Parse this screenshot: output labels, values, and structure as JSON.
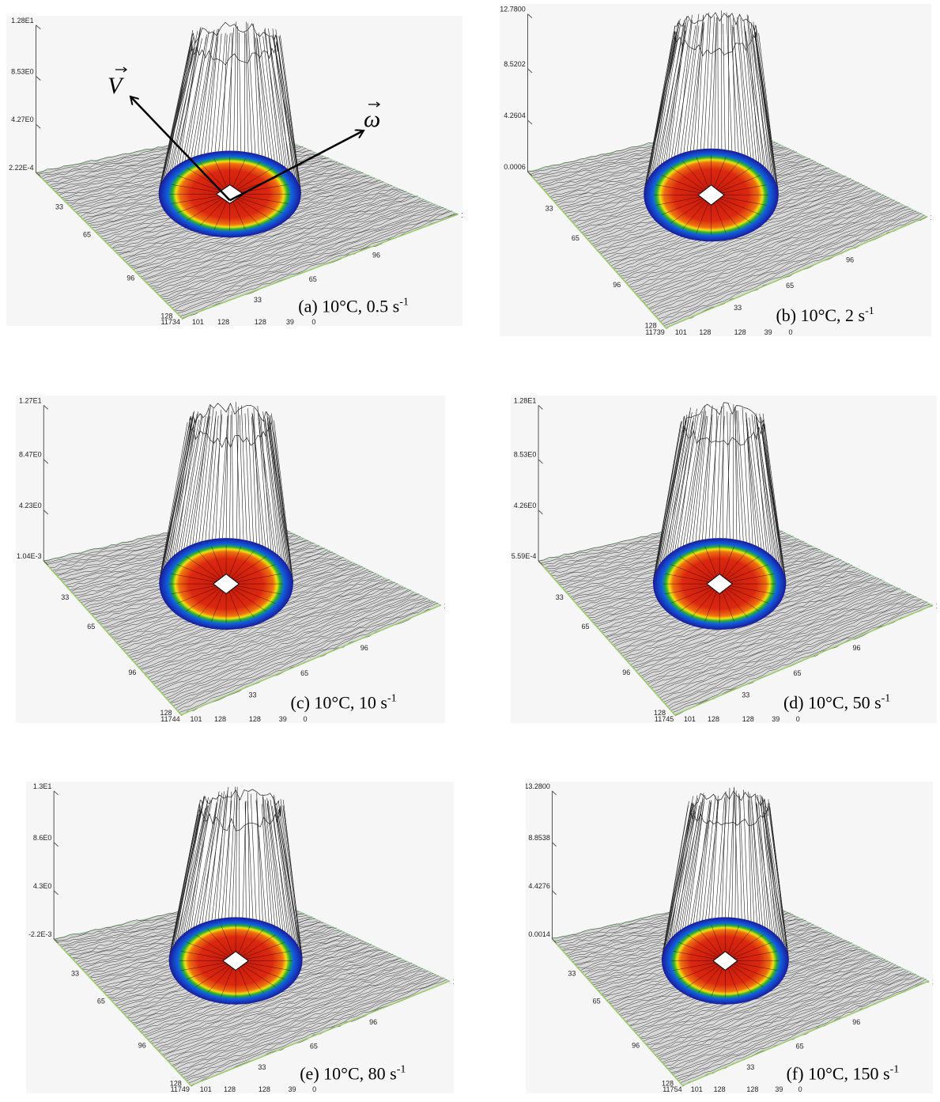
{
  "panels": [
    {
      "z_ticks": [
        "1.28E1",
        "8.53E0",
        "4.27E0",
        "2.22E-4"
      ],
      "left_ticks": [
        "33",
        "65",
        "96",
        "128"
      ],
      "right_ticks": [
        "128",
        "96",
        "65",
        "33"
      ],
      "bottom_ticks": [
        "11734",
        "101",
        "128",
        "128",
        "39",
        "0"
      ],
      "caption": "(a) 10°C, 0.5 s",
      "caption_sup": "-1"
    },
    {
      "z_ticks": [
        "12.7800",
        "8.5202",
        "4.2604",
        "0.0006"
      ],
      "left_ticks": [
        "33",
        "65",
        "96",
        "128"
      ],
      "right_ticks": [
        "128",
        "96",
        "65",
        "33"
      ],
      "bottom_ticks": [
        "11739",
        "101",
        "128",
        "128",
        "39",
        "0"
      ],
      "caption": "(b) 10°C, 2 s",
      "caption_sup": "-1"
    },
    {
      "z_ticks": [
        "1.27E1",
        "8.47E0",
        "4.23E0",
        "1.04E-3"
      ],
      "left_ticks": [
        "33",
        "65",
        "96",
        "128"
      ],
      "right_ticks": [
        "128",
        "96",
        "65",
        "33"
      ],
      "bottom_ticks": [
        "11744",
        "101",
        "128",
        "128",
        "39",
        "0"
      ],
      "caption": "(c) 10°C, 10 s",
      "caption_sup": "-1"
    },
    {
      "z_ticks": [
        "1.28E1",
        "8.53E0",
        "4.26E0",
        "5.59E-4"
      ],
      "left_ticks": [
        "33",
        "65",
        "96",
        "128"
      ],
      "right_ticks": [
        "128",
        "96",
        "65",
        "33"
      ],
      "bottom_ticks": [
        "11745",
        "101",
        "128",
        "128",
        "39",
        "0"
      ],
      "caption": "(d) 10°C, 50 s",
      "caption_sup": "-1"
    },
    {
      "z_ticks": [
        "1.3E1",
        "8.6E0",
        "4.3E0",
        "-2.2E-3"
      ],
      "left_ticks": [
        "33",
        "65",
        "96",
        "128"
      ],
      "right_ticks": [
        "128",
        "96",
        "65",
        "33"
      ],
      "bottom_ticks": [
        "11749",
        "101",
        "128",
        "128",
        "39",
        "0"
      ],
      "caption": "(e) 10°C, 80 s",
      "caption_sup": "-1"
    },
    {
      "z_ticks": [
        "13.2800",
        "8.8538",
        "4.4276",
        "0.0014"
      ],
      "left_ticks": [
        "33",
        "65",
        "96",
        "128"
      ],
      "right_ticks": [
        "128",
        "96",
        "65",
        "33"
      ],
      "bottom_ticks": [
        "11754",
        "101",
        "128",
        "128",
        "39",
        "0"
      ],
      "caption": "(f) 10°C, 150 s",
      "caption_sup": "-1"
    }
  ],
  "annotations": {
    "velocity": "V",
    "angular_velocity": "ω"
  }
}
